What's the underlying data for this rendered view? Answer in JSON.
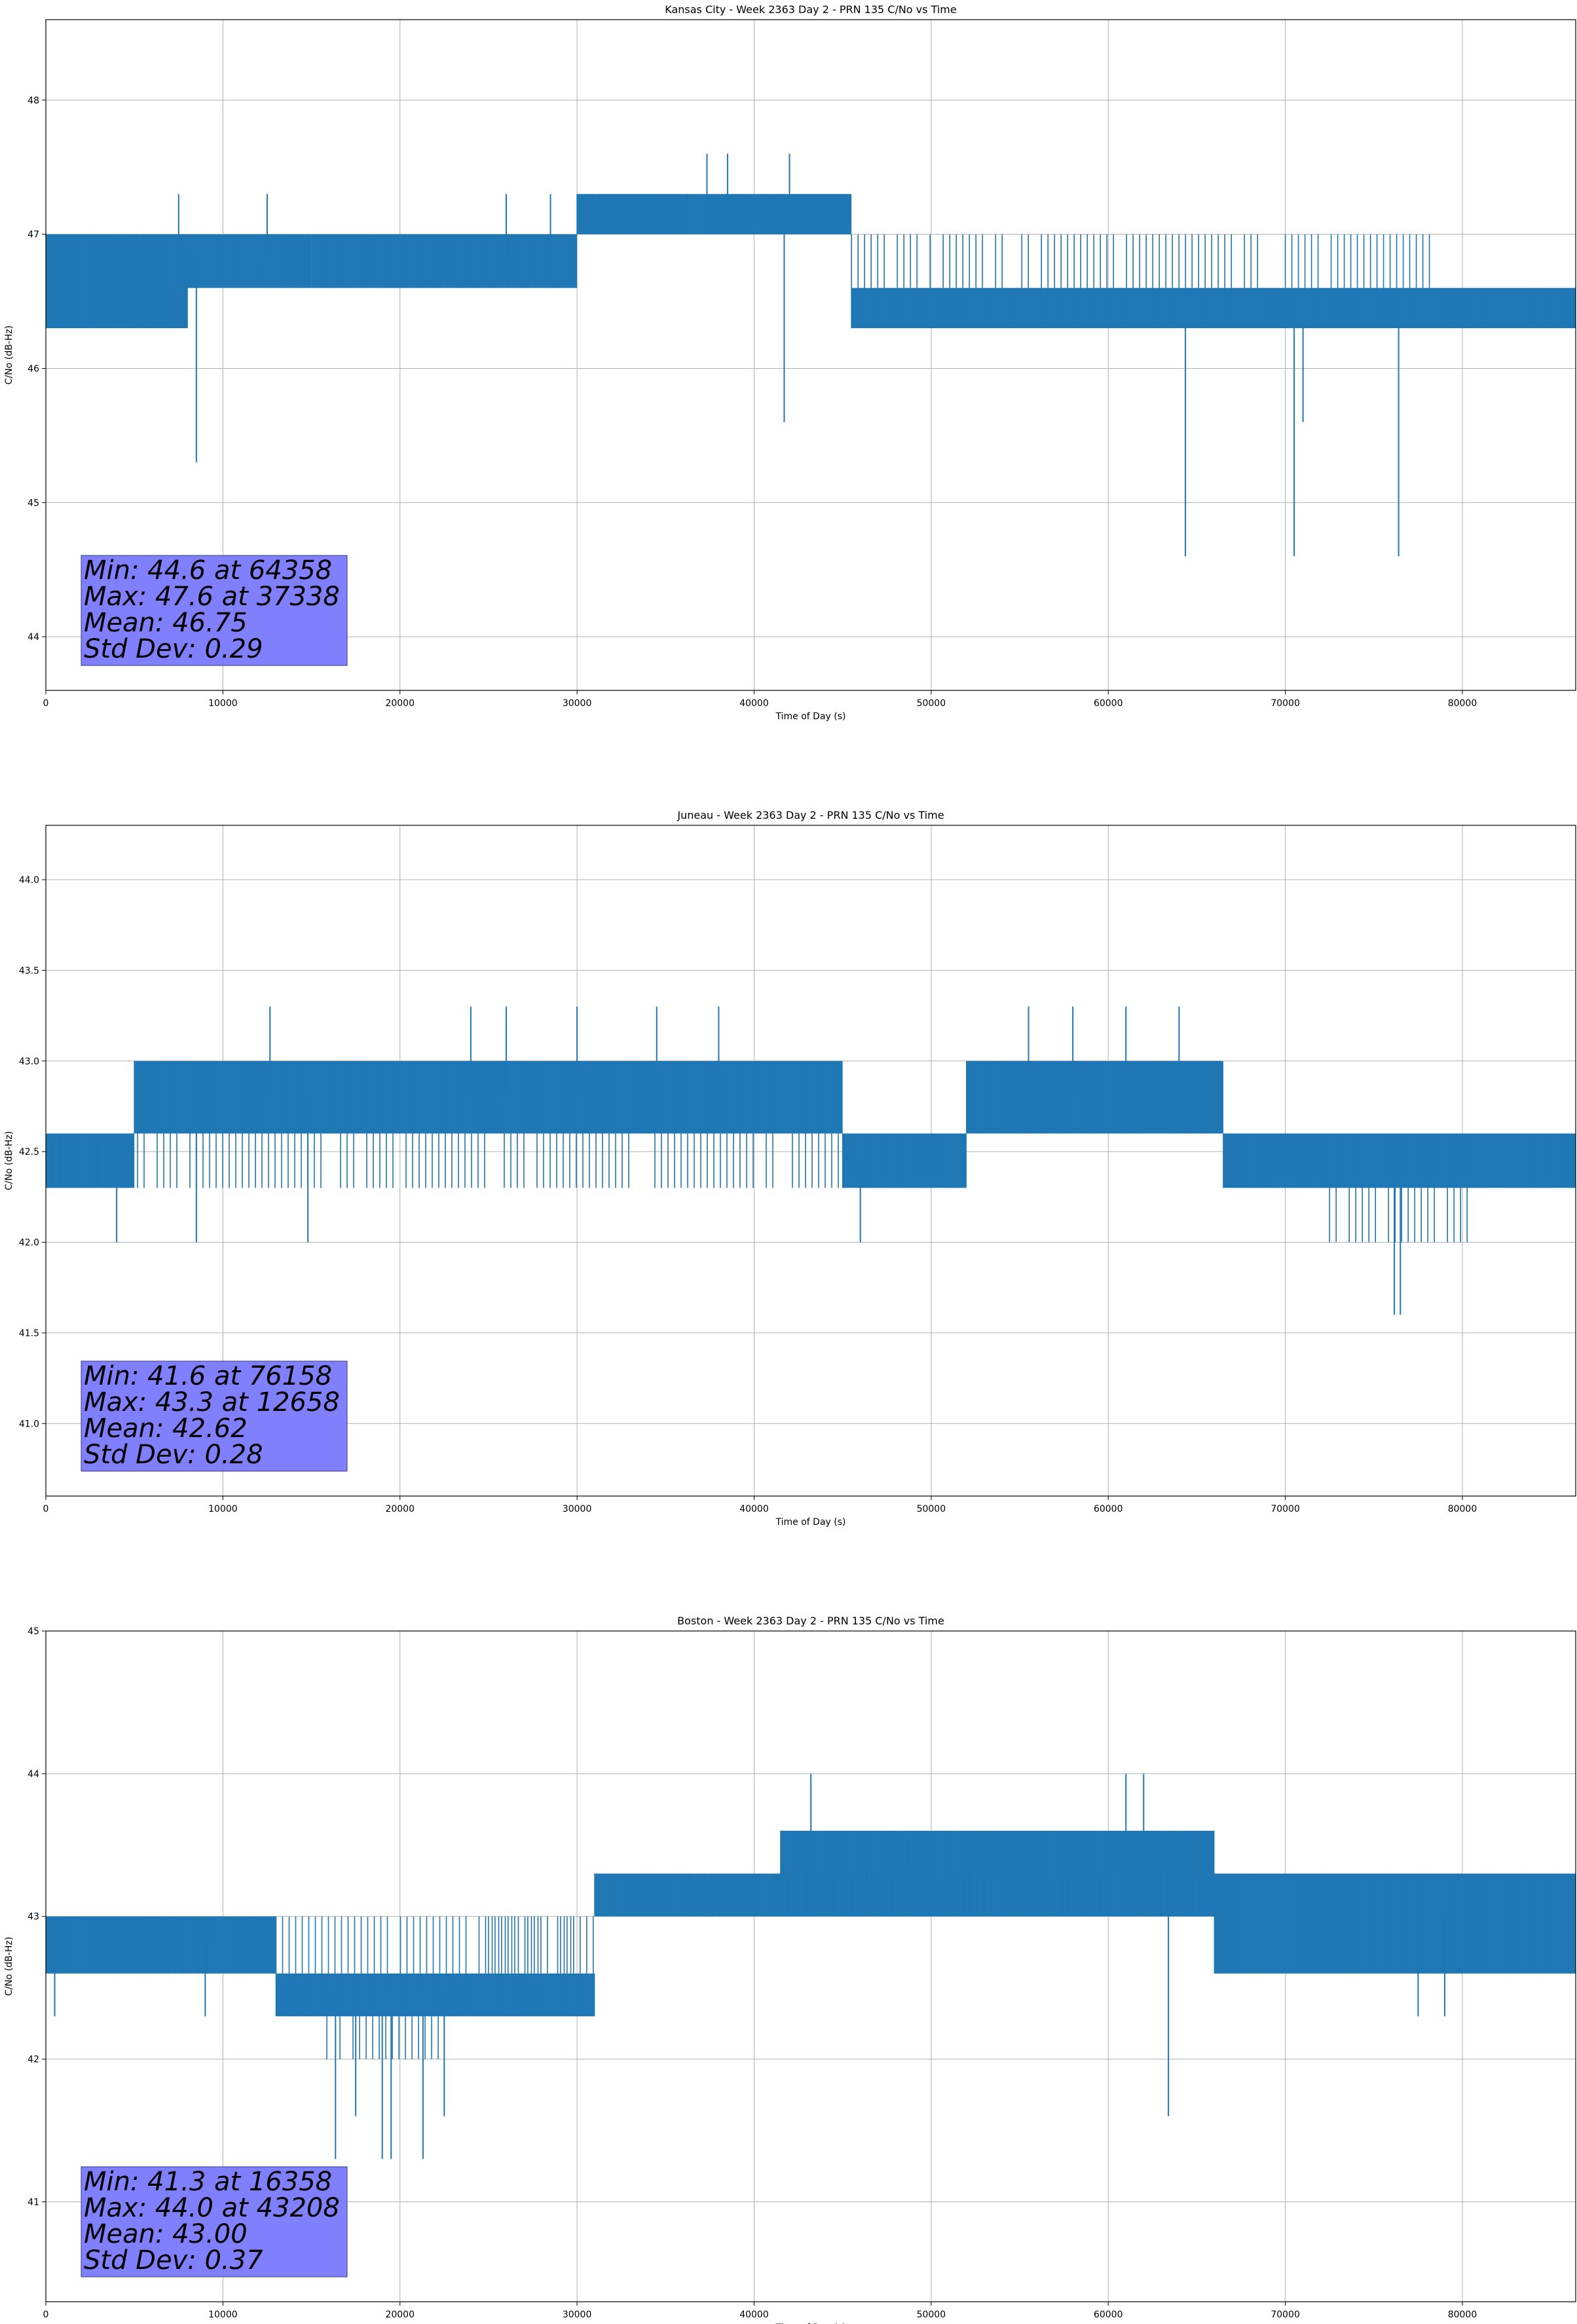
{
  "chart_data": [
    {
      "type": "line",
      "title": "Kansas City - Week 2363 Day 2 - PRN 135 C/No vs Time",
      "xlabel": "Time of Day (s)",
      "ylabel": "C/No (dB-Hz)",
      "xlim": [
        0,
        86400
      ],
      "ylim": [
        43.6,
        48.6
      ],
      "xticks": [
        0,
        10000,
        20000,
        30000,
        40000,
        50000,
        60000,
        70000,
        80000
      ],
      "yticks": [
        44,
        45,
        46,
        47,
        48
      ],
      "ytick_labels": [
        "44",
        "45",
        "46",
        "47",
        "48"
      ],
      "grid": true,
      "color": "#1f77b4",
      "stats": [
        "Min: 44.6 at 64358",
        "Max: 47.6 at 37338",
        "Mean: 46.75",
        "Std Dev: 0.29"
      ],
      "segments": [
        {
          "x": [
            0,
            8000
          ],
          "band": [
            46.3,
            47.0
          ],
          "base": 46.6
        },
        {
          "x": [
            8000,
            15000
          ],
          "band": [
            46.6,
            47.0
          ],
          "base": 46.8
        },
        {
          "x": [
            15000,
            30000
          ],
          "band": [
            46.6,
            47.0
          ],
          "base": 46.8
        },
        {
          "x": [
            30000,
            45500
          ],
          "band": [
            47.0,
            47.3
          ],
          "base": 47.15
        },
        {
          "x": [
            45500,
            86400
          ],
          "band": [
            46.3,
            46.6
          ],
          "base": 46.5
        }
      ],
      "band_overlays": [
        {
          "x": [
            45500,
            68500
          ],
          "band": [
            46.6,
            47.0
          ]
        },
        {
          "x": [
            70000,
            78500
          ],
          "band": [
            46.6,
            47.0
          ]
        }
      ],
      "spikes": [
        {
          "x": 8500,
          "y": 45.3
        },
        {
          "x": 41700,
          "y": 45.6
        },
        {
          "x": 64358,
          "y": 44.6
        },
        {
          "x": 70500,
          "y": 44.6
        },
        {
          "x": 71000,
          "y": 45.6
        },
        {
          "x": 76400,
          "y": 44.6
        },
        {
          "x": 37338,
          "y": 47.6
        },
        {
          "x": 38500,
          "y": 47.6
        },
        {
          "x": 42000,
          "y": 47.6
        },
        {
          "x": 7500,
          "y": 47.3
        },
        {
          "x": 12500,
          "y": 47.3
        },
        {
          "x": 26000,
          "y": 47.3
        },
        {
          "x": 28500,
          "y": 47.3
        }
      ]
    },
    {
      "type": "line",
      "title": "Juneau - Week 2363 Day 2 - PRN 135 C/No vs Time",
      "xlabel": "Time of Day (s)",
      "ylabel": "C/No (dB-Hz)",
      "xlim": [
        0,
        86400
      ],
      "ylim": [
        40.6,
        44.3
      ],
      "xticks": [
        0,
        10000,
        20000,
        30000,
        40000,
        50000,
        60000,
        70000,
        80000
      ],
      "yticks": [
        41.0,
        41.5,
        42.0,
        42.5,
        43.0,
        43.5,
        44.0
      ],
      "ytick_labels": [
        "41.0",
        "41.5",
        "42.0",
        "42.5",
        "43.0",
        "43.5",
        "44.0"
      ],
      "grid": true,
      "color": "#1f77b4",
      "stats": [
        "Min: 41.6 at 76158",
        "Max: 43.3 at 12658",
        "Mean: 42.62",
        "Std Dev: 0.28"
      ],
      "segments": [
        {
          "x": [
            0,
            5000
          ],
          "band": [
            42.3,
            42.6
          ],
          "base": 42.45
        },
        {
          "x": [
            5000,
            45000
          ],
          "band": [
            42.6,
            43.0
          ],
          "base": 42.8
        },
        {
          "x": [
            45000,
            52000
          ],
          "band": [
            42.3,
            42.6
          ],
          "base": 42.45
        },
        {
          "x": [
            52000,
            55000
          ],
          "band": [
            42.6,
            43.0
          ],
          "base": 42.8
        },
        {
          "x": [
            55000,
            66500
          ],
          "band": [
            43.0,
            42.6
          ],
          "base": 42.8
        },
        {
          "x": [
            66500,
            73000
          ],
          "band": [
            42.3,
            42.6
          ],
          "base": 42.45
        },
        {
          "x": [
            73000,
            86400
          ],
          "band": [
            42.3,
            42.6
          ],
          "base": 42.45
        }
      ],
      "band_overlays": [
        {
          "x": [
            0,
            45000
          ],
          "band": [
            42.3,
            42.6
          ]
        },
        {
          "x": [
            72500,
            80500
          ],
          "band": [
            42.0,
            42.3
          ]
        }
      ],
      "spikes": [
        {
          "x": 4000,
          "y": 42.0
        },
        {
          "x": 8500,
          "y": 42.0
        },
        {
          "x": 14800,
          "y": 42.0
        },
        {
          "x": 46000,
          "y": 42.0
        },
        {
          "x": 76158,
          "y": 41.6
        },
        {
          "x": 76500,
          "y": 41.6
        },
        {
          "x": 12658,
          "y": 43.3
        },
        {
          "x": 24000,
          "y": 43.3
        },
        {
          "x": 26000,
          "y": 43.3
        },
        {
          "x": 30000,
          "y": 43.3
        },
        {
          "x": 34500,
          "y": 43.3
        },
        {
          "x": 38000,
          "y": 43.3
        },
        {
          "x": 55500,
          "y": 43.3
        },
        {
          "x": 58000,
          "y": 43.3
        },
        {
          "x": 61000,
          "y": 43.3
        },
        {
          "x": 64000,
          "y": 43.3
        }
      ]
    },
    {
      "type": "line",
      "title": "Boston - Week 2363 Day 2 - PRN 135 C/No vs Time",
      "xlabel": "Time of Day (s)",
      "ylabel": "C/No (dB-Hz)",
      "xlim": [
        0,
        86400
      ],
      "ylim": [
        40.3,
        45.0
      ],
      "xticks": [
        0,
        10000,
        20000,
        30000,
        40000,
        50000,
        60000,
        70000,
        80000
      ],
      "yticks": [
        41,
        42,
        43,
        44,
        45
      ],
      "ytick_labels": [
        "41",
        "42",
        "43",
        "44",
        "45"
      ],
      "grid": true,
      "color": "#1f77b4",
      "stats": [
        "Min: 41.3 at 16358",
        "Max: 44.0 at 43208",
        "Mean: 43.00",
        "Std Dev: 0.37"
      ],
      "segments": [
        {
          "x": [
            0,
            13000
          ],
          "band": [
            42.6,
            43.0
          ],
          "base": 42.8
        },
        {
          "x": [
            13000,
            31000
          ],
          "band": [
            42.3,
            42.6
          ],
          "base": 42.45
        },
        {
          "x": [
            31000,
            41500
          ],
          "band": [
            43.0,
            43.3
          ],
          "base": 43.15
        },
        {
          "x": [
            41500,
            66000
          ],
          "band": [
            43.0,
            43.6
          ],
          "base": 43.3
        },
        {
          "x": [
            66000,
            86400
          ],
          "band": [
            42.6,
            43.3
          ],
          "base": 43.0
        }
      ],
      "band_overlays": [
        {
          "x": [
            13000,
            30000
          ],
          "band": [
            42.6,
            43.0
          ]
        },
        {
          "x": [
            15500,
            22500
          ],
          "band": [
            42.0,
            42.3
          ]
        },
        {
          "x": [
            41500,
            66000
          ],
          "band": [
            43.0,
            43.3
          ]
        },
        {
          "x": [
            25000,
            31000
          ],
          "band": [
            42.6,
            43.0
          ]
        }
      ],
      "spikes": [
        {
          "x": 16358,
          "y": 41.3
        },
        {
          "x": 19000,
          "y": 41.3
        },
        {
          "x": 19500,
          "y": 41.3
        },
        {
          "x": 21300,
          "y": 41.3
        },
        {
          "x": 17500,
          "y": 41.6
        },
        {
          "x": 22500,
          "y": 41.6
        },
        {
          "x": 63400,
          "y": 41.6
        },
        {
          "x": 43208,
          "y": 44.0
        },
        {
          "x": 61000,
          "y": 44.0
        },
        {
          "x": 62000,
          "y": 44.0
        },
        {
          "x": 500,
          "y": 42.3
        },
        {
          "x": 9000,
          "y": 42.3
        },
        {
          "x": 77500,
          "y": 42.3
        },
        {
          "x": 79000,
          "y": 42.3
        }
      ]
    }
  ]
}
